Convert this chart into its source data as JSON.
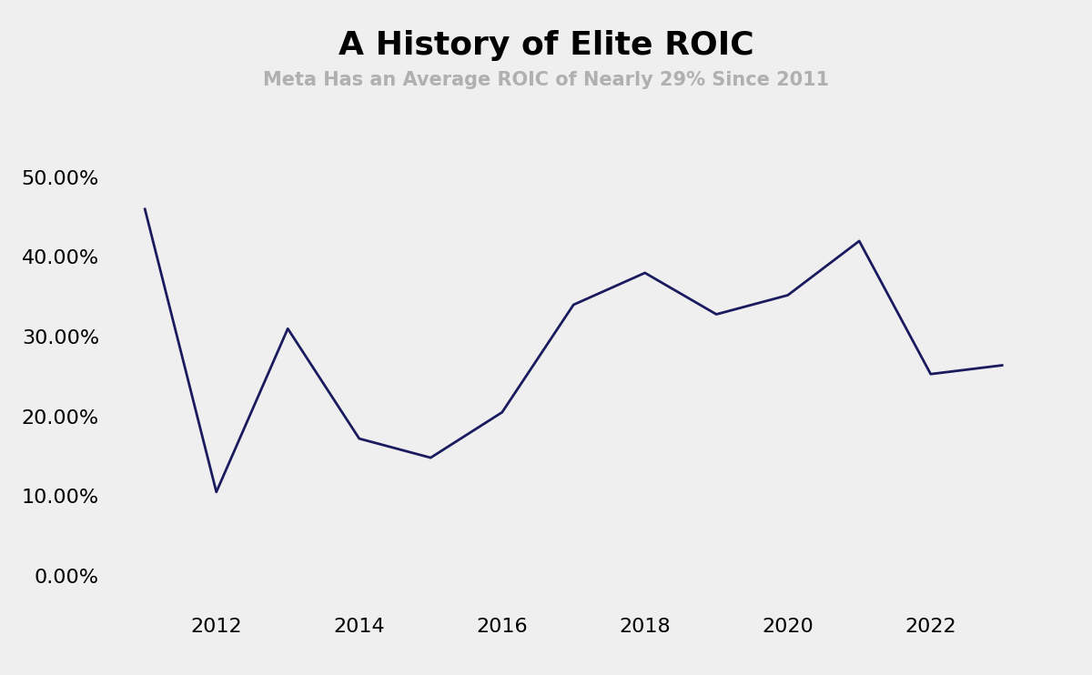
{
  "title": "A History of Elite ROIC",
  "subtitle": "Meta Has an Average ROIC of Nearly 29% Since 2011",
  "years": [
    2011,
    2012,
    2013,
    2014,
    2015,
    2016,
    2017,
    2018,
    2019,
    2020,
    2021,
    2022,
    2023
  ],
  "values": [
    0.46,
    0.105,
    0.31,
    0.172,
    0.148,
    0.205,
    0.34,
    0.38,
    0.328,
    0.352,
    0.42,
    0.253,
    0.264
  ],
  "line_color": "#1a1a5e",
  "line_width": 2.0,
  "background_color": "#efefef",
  "title_fontsize": 26,
  "subtitle_fontsize": 15,
  "subtitle_color": "#b0b0b0",
  "tick_label_fontsize": 16,
  "ytick_values": [
    0.0,
    0.1,
    0.2,
    0.3,
    0.4,
    0.5
  ],
  "ylim": [
    -0.04,
    0.57
  ],
  "xlim": [
    2010.5,
    2023.8
  ],
  "xtick_values": [
    2012,
    2014,
    2016,
    2018,
    2020,
    2022
  ],
  "grid": false
}
